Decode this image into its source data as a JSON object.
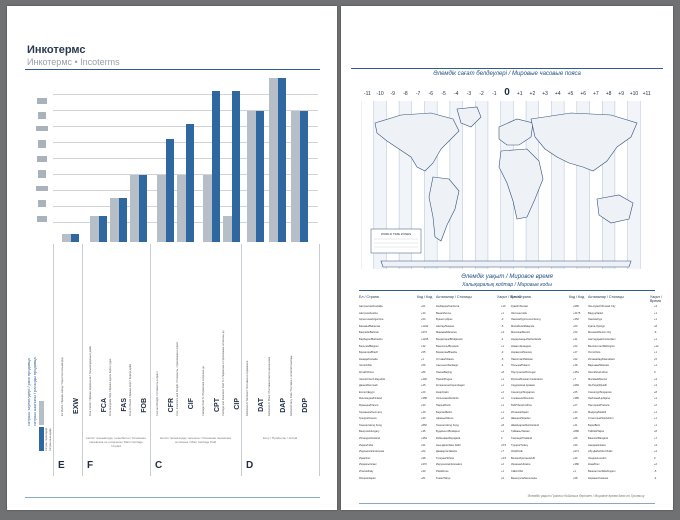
{
  "left_page": {
    "title": "Инкотермс",
    "subtitle": "Инкотермс • Incoterms",
    "side_labels": [
      "сатушы тәуекелдері / риск продавца",
      "сатушы шығыны / расходы продавца"
    ],
    "legend": [
      "Сатушы тәуекелдері",
      "Сатушы шығындары",
      "Түсіндірме"
    ],
    "groups": [
      {
        "letter": "E",
        "caption": "",
        "terms": [
          {
            "code": "EXW",
            "desc": "Ex Works / Франко-завод / Зауыттан тасымалдау"
          }
        ]
      },
      {
        "letter": "F",
        "caption": "Негізгі тасымалдау төленбеген / Основная перевозка не оплачена / Main Carriage Unpaid",
        "terms": [
          {
            "code": "FCA",
            "desc": "Free Carrier / Франко-перевозчик / Тасымалдаушыға дейін"
          },
          {
            "code": "FAS",
            "desc": "Free Alongside Ship / Франко вдоль борта судна"
          },
          {
            "code": "FOB",
            "desc": "Free On Board / Франко-борт / Бортқа дейін"
          }
        ]
      },
      {
        "letter": "C",
        "caption": "Негізгі тасымалдау төленген / Основная перевозка оплачена / Main Carriage Paid",
        "terms": [
          {
            "code": "CFR",
            "desc": "Cost and Freight / Стоимость и фрахт"
          },
          {
            "code": "CIF",
            "desc": "Cost, Insurance and Freight / Стоимость, страхование и фрахт"
          },
          {
            "code": "CPT",
            "desc": "Carriage Paid To / Перевозка оплачена до"
          },
          {
            "code": "CIP",
            "desc": "Carriage and Insurance Paid To / Перевозка и страхование оплачены до"
          }
        ]
      },
      {
        "letter": "D",
        "caption": "Келу / Прибытие / Arrival",
        "terms": [
          {
            "code": "DAT",
            "desc": "Delivered At Terminal / Поставка на терминале"
          },
          {
            "code": "DAP",
            "desc": "Delivered At Place / Поставка в месте назначения"
          },
          {
            "code": "DDP",
            "desc": "Delivered Duty Paid / Поставка с оплатой пошлины"
          }
        ]
      }
    ],
    "bars": [
      {
        "code": "EXW",
        "risk": 0.05,
        "cost": 0.05
      },
      {
        "code": "FCA",
        "risk": 0.16,
        "cost": 0.16
      },
      {
        "code": "FAS",
        "risk": 0.27,
        "cost": 0.27
      },
      {
        "code": "FOB",
        "risk": 0.41,
        "cost": 0.41
      },
      {
        "code": "CFR",
        "risk": 0.41,
        "cost": 0.63
      },
      {
        "code": "CIF",
        "risk": 0.41,
        "cost": 0.72
      },
      {
        "code": "CPT",
        "risk": 0.41,
        "cost": 0.92
      },
      {
        "code": "CIP",
        "risk": 0.16,
        "cost": 0.92
      },
      {
        "code": "DAT",
        "risk": 0.8,
        "cost": 0.8
      },
      {
        "code": "DAP",
        "risk": 1.0,
        "cost": 1.0
      },
      {
        "code": "DDP",
        "risk": 0.8,
        "cost": 0.8
      }
    ],
    "colors": {
      "risk": "#b6bec8",
      "cost": "#2f68a1",
      "accent": "#1f4f85"
    }
  },
  "right_page": {
    "map_title": "Әлемдік сағат белдеулері / Мировые часовые пояса",
    "tz_labels": [
      "-11",
      "-10",
      "-9",
      "-8",
      "-7",
      "-6",
      "-5",
      "-4",
      "-3",
      "-2",
      "-1",
      "0",
      "+1",
      "+2",
      "+3",
      "+4",
      "+5",
      "+6",
      "+7",
      "+8",
      "+9",
      "+10",
      "+11"
    ],
    "legend_box": "WORLD TIME ZONES",
    "world_time_title": "Әлемдік уақыт / Мировое время",
    "codes_title": "Халықаралық кодтар / Мировые коды",
    "column_headers": [
      {
        "country": "Ел / Страна",
        "code": "Код / Код"
      },
      {
        "country": "Астаналар / Столицы",
        "time": "Уақыт / Время"
      },
      {
        "country": "Ел / Страна",
        "code": "Код / Код"
      },
      {
        "country": "Астаналар / Столицы",
        "time": "Уақыт / Время"
      }
    ],
    "table_col1": [
      [
        "Австралия/Australia",
        "+61"
      ],
      [
        "Австрия/Austria",
        "+43"
      ],
      [
        "Аргентина/Argentina",
        "+54"
      ],
      [
        "Бахамы/Bahamas",
        "+1242"
      ],
      [
        "Бахрейн/Bahrain",
        "+973"
      ],
      [
        "Барбадос/Barbados",
        "+1246"
      ],
      [
        "Бельгия/Belgium",
        "+32"
      ],
      [
        "Бразилия/Brazil",
        "+55"
      ],
      [
        "Канада/Canada",
        "+1"
      ],
      [
        "Чили/Chile",
        "+56"
      ],
      [
        "Китай/China",
        "+86"
      ],
      [
        "Чехия/Czech Republic",
        "+420"
      ],
      [
        "Дания/Denmark",
        "+45"
      ],
      [
        "Египет/Egypt",
        "+20"
      ],
      [
        "Финляндия/Finland",
        "+358"
      ],
      [
        "Франция/France",
        "+33"
      ],
      [
        "Германия/Germany",
        "+49"
      ],
      [
        "Греция/Greece",
        "+30"
      ],
      [
        "Гонконг/Hong Kong",
        "+852"
      ],
      [
        "Венгрия/Hungary",
        "+36"
      ],
      [
        "Исландия/Iceland",
        "+354"
      ],
      [
        "Индия/India",
        "+91"
      ],
      [
        "Индонезия/Indonesia",
        "+62"
      ],
      [
        "Иран/Iran",
        "+98"
      ],
      [
        "Израиль/Israel",
        "+972"
      ],
      [
        "Италия/Italy",
        "+39"
      ],
      [
        "Япония/Japan",
        "+81"
      ]
    ],
    "table_col2": [
      [
        "Канберра/Canberra",
        "+10"
      ],
      [
        "Вена/Vienna",
        "+1"
      ],
      [
        "Буэнос-Айрес",
        "-3"
      ],
      [
        "Нассау/Nassau",
        "-5"
      ],
      [
        "Манама/Manama",
        "+3"
      ],
      [
        "Бриджтаун/Bridgetown",
        "-4"
      ],
      [
        "Брюссель/Brussels",
        "+1"
      ],
      [
        "Бразилиа/Brasilia",
        "-3"
      ],
      [
        "Оттава/Ottawa",
        "-5"
      ],
      [
        "Сантьяго/Santiago",
        "-4"
      ],
      [
        "Пекин/Beijing",
        "+8"
      ],
      [
        "Прага/Prague",
        "+1"
      ],
      [
        "Копенгаген/Copenhagen",
        "+1"
      ],
      [
        "Каир/Cairo",
        "+2"
      ],
      [
        "Хельсинки/Helsinki",
        "+2"
      ],
      [
        "Париж/Paris",
        "+1"
      ],
      [
        "Берлин/Berlin",
        "+1"
      ],
      [
        "Афины/Athens",
        "+2"
      ],
      [
        "Гонконг/Hong Kong",
        "+8"
      ],
      [
        "Будапешт/Budapest",
        "+1"
      ],
      [
        "Рейкьявик/Reykjavik",
        "0"
      ],
      [
        "Нью-Дели/New Delhi",
        "+5.5"
      ],
      [
        "Джакарта/Jakarta",
        "+7"
      ],
      [
        "Тегеран/Tehran",
        "+3.5"
      ],
      [
        "Иерусалим/Jerusalem",
        "+2"
      ],
      [
        "Рим/Rome",
        "+1"
      ],
      [
        "Токио/Tokyo",
        "+9"
      ]
    ],
    "table_col3": [
      [
        "Кувейт/Kuwait",
        "+965"
      ],
      [
        "Лихтенштейн",
        "+4175"
      ],
      [
        "Люксембург/Luxembourg",
        "+352"
      ],
      [
        "Малайзия/Malaysia",
        "+60"
      ],
      [
        "Мексика/Mexico",
        "+52"
      ],
      [
        "Нидерланды/Netherlands",
        "+31"
      ],
      [
        "Новая Зеландия",
        "+64"
      ],
      [
        "Норвегия/Norway",
        "+47"
      ],
      [
        "Пакистан/Pakistan",
        "+92"
      ],
      [
        "Польша/Poland",
        "+48"
      ],
      [
        "Португалия/Portugal",
        "+351"
      ],
      [
        "Россия/Russian Federation",
        "+7"
      ],
      [
        "Саудовская Аравия",
        "+966"
      ],
      [
        "Сингапур/Singapore",
        "+65"
      ],
      [
        "Словения/Slovenia",
        "+386"
      ],
      [
        "ЮАР/South Africa",
        "+27"
      ],
      [
        "Испания/Spain",
        "+34"
      ],
      [
        "Швеция/Sweden",
        "+46"
      ],
      [
        "Швейцария/Switzerland",
        "+41"
      ],
      [
        "Тайвань/Taiwan",
        "+886"
      ],
      [
        "Таиланд/Thailand",
        "+66"
      ],
      [
        "Турция/Turkey",
        "+90"
      ],
      [
        "ОАЭ/UAE",
        "+971"
      ],
      [
        "Великобритания/UK",
        "+44"
      ],
      [
        "Украина/Ukraine",
        "+380"
      ],
      [
        "США/USA",
        "+1"
      ],
      [
        "Венесуэла/Venezuela",
        "+58"
      ]
    ],
    "table_col4": [
      [
        "Эль-Кувейт/Kuwait City",
        "+3"
      ],
      [
        "Вадуц/Vaduz",
        "+1"
      ],
      [
        "Люксембург",
        "+1"
      ],
      [
        "Куала-Лумпур",
        "+8"
      ],
      [
        "Мехико/Mexico City",
        "-6"
      ],
      [
        "Амстердам/Amsterdam",
        "+1"
      ],
      [
        "Веллингтон/Wellington",
        "+12"
      ],
      [
        "Осло/Oslo",
        "+1"
      ],
      [
        "Исламабад/Islamabad",
        "+5"
      ],
      [
        "Варшава/Warsaw",
        "+1"
      ],
      [
        "Лиссабон/Lisbon",
        "0"
      ],
      [
        "Москва/Moscow",
        "+3"
      ],
      [
        "Эр-Рияд/Riyadh",
        "+3"
      ],
      [
        "Сингапур/Singapore",
        "+8"
      ],
      [
        "Любляна/Ljubljana",
        "+1"
      ],
      [
        "Претория/Pretoria",
        "+2"
      ],
      [
        "Мадрид/Madrid",
        "+1"
      ],
      [
        "Стокгольм/Stockholm",
        "+1"
      ],
      [
        "Берн/Bern",
        "+1"
      ],
      [
        "Тайбэй/Taipei",
        "+8"
      ],
      [
        "Бангкок/Bangkok",
        "+7"
      ],
      [
        "Анкара/Ankara",
        "+3"
      ],
      [
        "Абу-Даби/Abu Dhabi",
        "+4"
      ],
      [
        "Лондон/London",
        "0"
      ],
      [
        "Киев/Kiev",
        "+2"
      ],
      [
        "Вашингтон/Washington",
        "-5"
      ],
      [
        "Каракас/Caracas",
        "-4"
      ]
    ],
    "footnote": "Әлемдік уақыт Гринвич бойынша берілген / Мировое время дано по Гринвичу"
  }
}
